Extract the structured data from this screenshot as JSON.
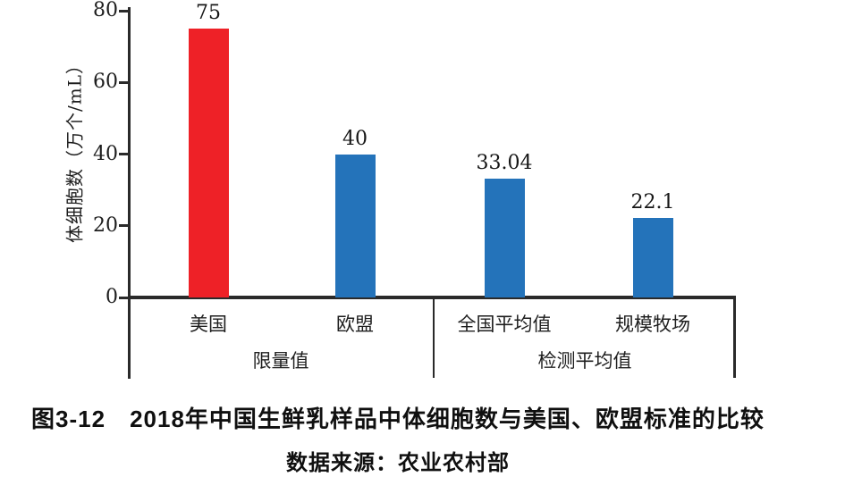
{
  "figure": {
    "caption": "图3-12　2018年中国生鲜乳样品中体细胞数与美国、欧盟标准的比较",
    "source": "数据来源：农业农村部"
  },
  "chart_data": {
    "type": "bar",
    "title": "图3-12 2018年中国生鲜乳样品中体细胞数与美国、欧盟标准的比较",
    "xlabel": "",
    "ylabel": "体细胞数（万个/mL）",
    "ylim": [
      0,
      80
    ],
    "yticks": [
      0,
      20,
      40,
      60,
      80
    ],
    "grid": false,
    "legend_position": "none",
    "categories": [
      "美国",
      "欧盟",
      "全国平均值",
      "规模牧场"
    ],
    "values": [
      75,
      40,
      33.04,
      22.1
    ],
    "value_labels": [
      "75",
      "40",
      "33.04",
      "22.1"
    ],
    "bar_colors": [
      "#EE2127",
      "#2473BA",
      "#2473BA",
      "#2473BA"
    ],
    "groups": [
      {
        "label": "限量值",
        "categories": [
          "美国",
          "欧盟"
        ],
        "values": [
          75,
          40
        ]
      },
      {
        "label": "检测平均值",
        "categories": [
          "全国平均值",
          "规模牧场"
        ],
        "values": [
          33.04,
          22.1
        ]
      }
    ],
    "colors": {
      "bar_red": "#EE2127",
      "bar_blue": "#2473BA",
      "axis": "#2A2A2A",
      "text": "#1E1E1E",
      "background": "#FFFFFF"
    }
  }
}
